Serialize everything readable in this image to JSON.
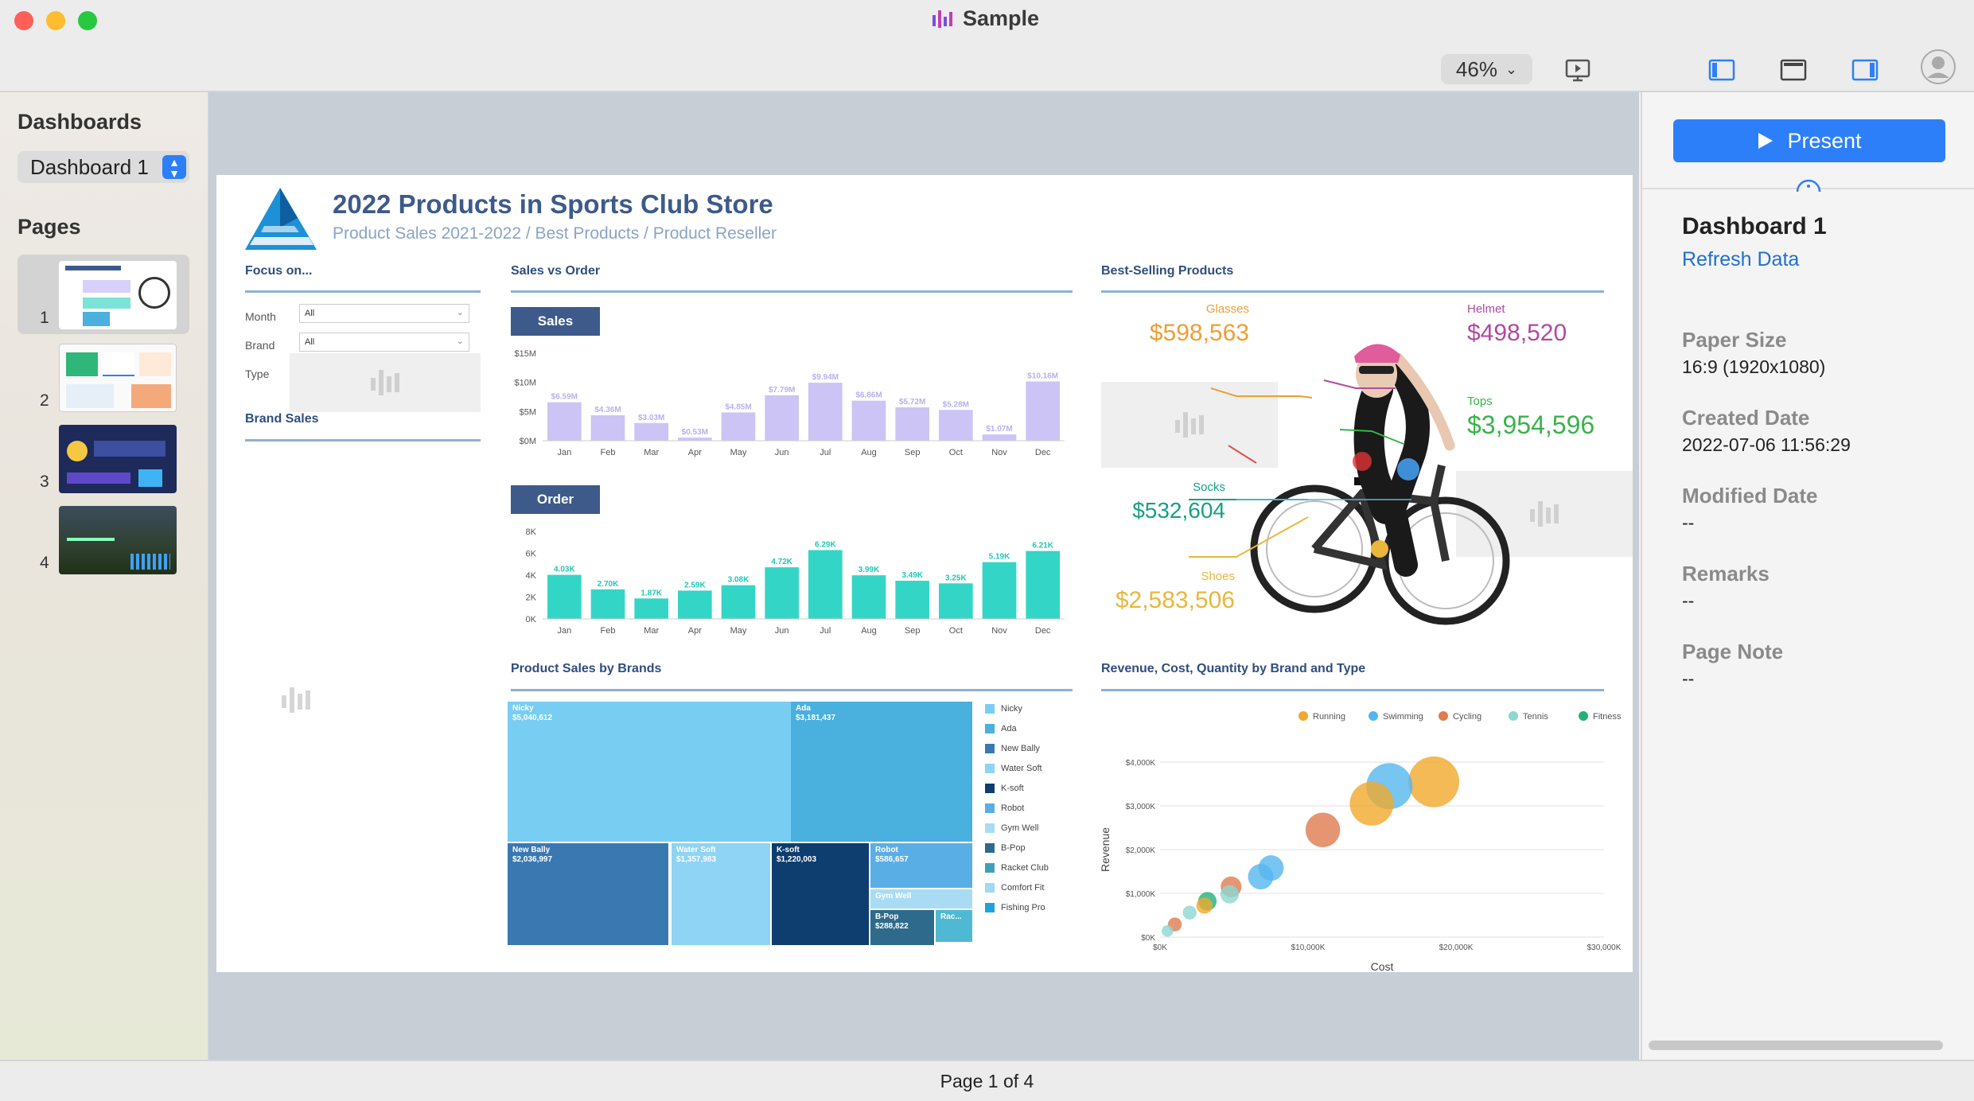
{
  "window": {
    "title": "Sample",
    "zoom": "46%"
  },
  "sidebar": {
    "dashboards_heading": "Dashboards",
    "selected_dashboard": "Dashboard 1",
    "pages_heading": "Pages",
    "pages": [
      {
        "number": "1"
      },
      {
        "number": "2"
      },
      {
        "number": "3"
      },
      {
        "number": "4"
      }
    ]
  },
  "dashboard": {
    "title": "2022 Products in Sports Club Store",
    "subtitle": "Product Sales 2021-2022 / Best Products / Product Reseller",
    "focus": {
      "heading": "Focus on...",
      "month_label": "Month",
      "month_value": "All",
      "brand_label": "Brand",
      "brand_value": "All",
      "type_label": "Type"
    },
    "brand_sales_heading": "Brand Sales",
    "sales_vs_order_heading": "Sales vs Order",
    "best_selling_heading": "Best-Selling Products",
    "product_sales_heading": "Product Sales by Brands",
    "revenue_heading": "Revenue, Cost, Quantity by Brand and Type"
  },
  "chart_data": [
    {
      "type": "bar",
      "title": "Sales",
      "categories": [
        "Jan",
        "Feb",
        "Mar",
        "Apr",
        "May",
        "Jun",
        "Jul",
        "Aug",
        "Sep",
        "Oct",
        "Nov",
        "Dec"
      ],
      "values": [
        6.59,
        4.36,
        3.03,
        0.53,
        4.85,
        7.79,
        9.94,
        6.86,
        5.72,
        5.28,
        1.07,
        10.16
      ],
      "labels": [
        "$6.59M",
        "$4.36M",
        "$3.03M",
        "$0.53M",
        "$4.85M",
        "$7.79M",
        "$9.94M",
        "$6.86M",
        "$5.72M",
        "$5.28M",
        "$1.07M",
        "$10.16M"
      ],
      "yticks": [
        "$0M",
        "$5M",
        "$10M",
        "$15M"
      ],
      "ylim": [
        0,
        15
      ],
      "color": "#cbc4f5"
    },
    {
      "type": "bar",
      "title": "Order",
      "categories": [
        "Jan",
        "Feb",
        "Mar",
        "Apr",
        "May",
        "Jun",
        "Jul",
        "Aug",
        "Sep",
        "Oct",
        "Nov",
        "Dec"
      ],
      "values": [
        4.03,
        2.7,
        1.87,
        2.59,
        3.08,
        4.72,
        6.29,
        3.99,
        3.49,
        3.25,
        5.19,
        6.21
      ],
      "labels": [
        "4.03K",
        "2.70K",
        "1.87K",
        "2.59K",
        "3.08K",
        "4.72K",
        "6.29K",
        "3.99K",
        "3.49K",
        "3.25K",
        "5.19K",
        "6.21K"
      ],
      "yticks": [
        "0K",
        "2K",
        "4K",
        "6K",
        "8K"
      ],
      "ylim": [
        0,
        8
      ],
      "color": "#33d6c6"
    },
    {
      "type": "treemap",
      "items": [
        {
          "name": "Nicky",
          "value": "$5,040,612",
          "color": "#78cdf2"
        },
        {
          "name": "Ada",
          "value": "$3,181,437",
          "color": "#4ab0dd"
        },
        {
          "name": "New Bally",
          "value": "$2,036,997",
          "color": "#3a78b2"
        },
        {
          "name": "Water Soft",
          "value": "$1,357,983",
          "color": "#8fd4f4"
        },
        {
          "name": "K-soft",
          "value": "$1,220,003",
          "color": "#0e3d70"
        },
        {
          "name": "Robot",
          "value": "$586,657",
          "color": "#5aaee6"
        },
        {
          "name": "Gym Well",
          "value": "",
          "color": "#a9dcf4"
        },
        {
          "name": "B-Pop",
          "value": "$288,822",
          "color": "#2e6a8c"
        },
        {
          "name": "Rac...",
          "value": "",
          "color": "#4fb9d4"
        }
      ],
      "legend": [
        {
          "name": "Nicky",
          "color": "#78cdf2"
        },
        {
          "name": "Ada",
          "color": "#4ab0dd"
        },
        {
          "name": "New Bally",
          "color": "#3a78b2"
        },
        {
          "name": "Water Soft",
          "color": "#8fd4f4"
        },
        {
          "name": "K-soft",
          "color": "#0e3d70"
        },
        {
          "name": "Robot",
          "color": "#5aaee6"
        },
        {
          "name": "Gym Well",
          "color": "#a9dcf4"
        },
        {
          "name": "B-Pop",
          "color": "#2e6a8c"
        },
        {
          "name": "Racket Club",
          "color": "#3f9fb8"
        },
        {
          "name": "Comfort Fit",
          "color": "#9fdaf0"
        },
        {
          "name": "Fishing Pro",
          "color": "#1fa2dd"
        }
      ]
    },
    {
      "type": "scatter",
      "xlabel": "Cost",
      "ylabel": "Revenue",
      "xlim": [
        0,
        30000
      ],
      "ylim": [
        0,
        4000
      ],
      "xticks": [
        "$0K",
        "$10,000K",
        "$20,000K",
        "$30,000K"
      ],
      "yticks": [
        "$0K",
        "$1,000K",
        "$2,000K",
        "$3,000K",
        "$4,000K"
      ],
      "legend": [
        {
          "name": "Running",
          "color": "#f0a92c"
        },
        {
          "name": "Swimming",
          "color": "#55b6ee"
        },
        {
          "name": "Cycling",
          "color": "#e07a4f"
        },
        {
          "name": "Tennis",
          "color": "#8dd7d1"
        },
        {
          "name": "Fitness",
          "color": "#22b07a"
        }
      ],
      "points": [
        {
          "x": 18500,
          "y": 3550,
          "r": 22,
          "c": "#f0a92c"
        },
        {
          "x": 15500,
          "y": 3450,
          "r": 20,
          "c": "#55b6ee"
        },
        {
          "x": 14300,
          "y": 3050,
          "r": 19,
          "c": "#f0a92c"
        },
        {
          "x": 11000,
          "y": 2450,
          "r": 15,
          "c": "#e07a4f"
        },
        {
          "x": 7500,
          "y": 1580,
          "r": 11,
          "c": "#55b6ee"
        },
        {
          "x": 6800,
          "y": 1380,
          "r": 11,
          "c": "#55b6ee"
        },
        {
          "x": 4800,
          "y": 1150,
          "r": 9,
          "c": "#e07a4f"
        },
        {
          "x": 4700,
          "y": 980,
          "r": 8,
          "c": "#8dd7d1"
        },
        {
          "x": 3200,
          "y": 820,
          "r": 8,
          "c": "#22b07a"
        },
        {
          "x": 3000,
          "y": 720,
          "r": 7,
          "c": "#f0a92c"
        },
        {
          "x": 2000,
          "y": 560,
          "r": 6,
          "c": "#8dd7d1"
        },
        {
          "x": 1000,
          "y": 290,
          "r": 6,
          "c": "#e07a4f"
        },
        {
          "x": 500,
          "y": 140,
          "r": 5,
          "c": "#8dd7d1"
        }
      ]
    }
  ],
  "best_selling": [
    {
      "name": "Glasses",
      "value": "$598,563",
      "color": "#ef9e33"
    },
    {
      "name": "Helmet",
      "value": "$498,520",
      "color": "#b04aa0"
    },
    {
      "name": "Tops",
      "value": "$3,954,596",
      "color": "#39b34a"
    },
    {
      "name": "Socks",
      "value": "$532,604",
      "color": "#16a085"
    },
    {
      "name": "Shoes",
      "value": "$2,583,506",
      "color": "#e8b73c"
    }
  ],
  "panel": {
    "present_label": "Present",
    "dashboard_name": "Dashboard 1",
    "refresh_label": "Refresh Data",
    "paper_size_label": "Paper Size",
    "paper_size_value": "16:9 (1920x1080)",
    "created_label": "Created Date",
    "created_value": "2022-07-06 11:56:29",
    "modified_label": "Modified Date",
    "modified_value": "--",
    "remarks_label": "Remarks",
    "remarks_value": "--",
    "note_label": "Page Note",
    "note_value": "--"
  },
  "status": {
    "page_info": "Page 1 of 4"
  }
}
